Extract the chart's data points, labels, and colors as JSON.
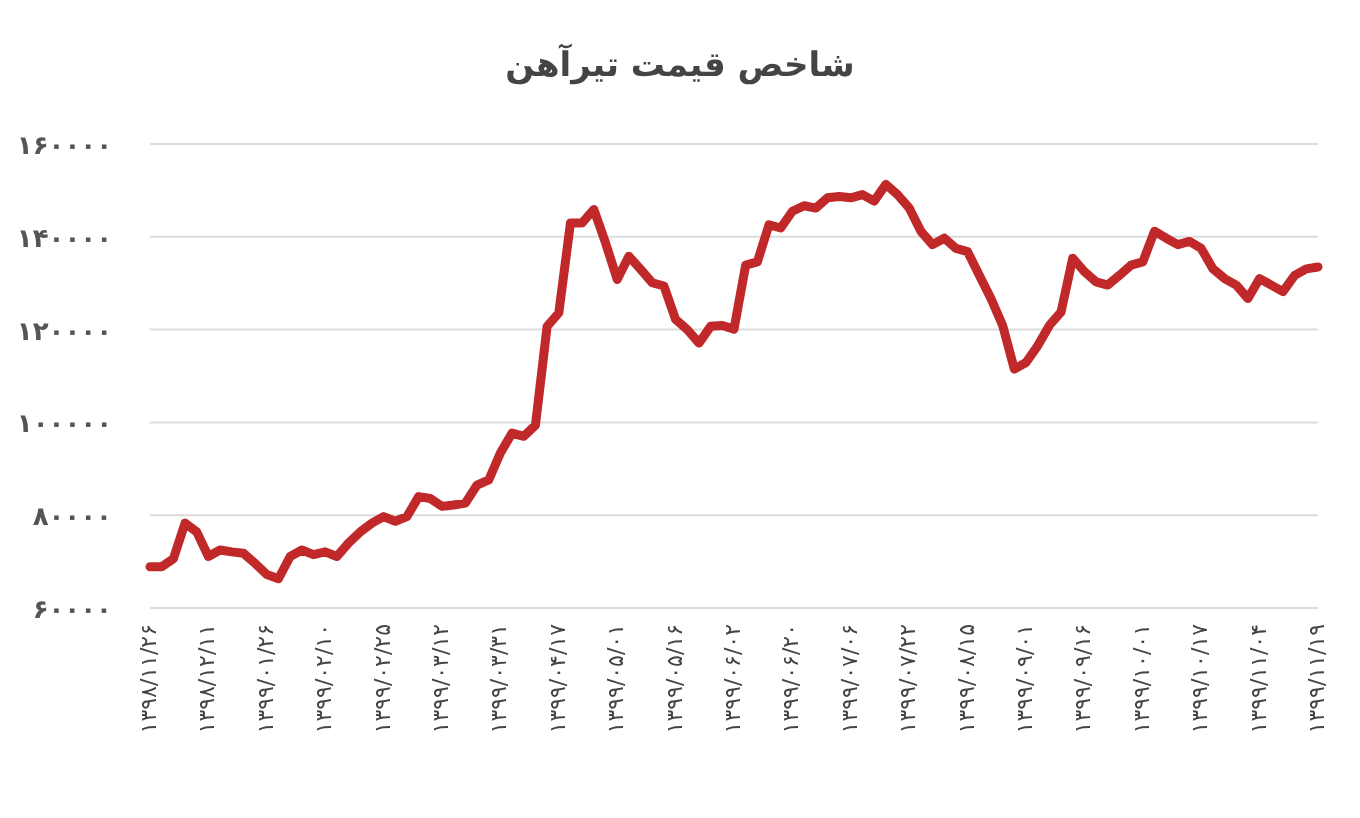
{
  "chart_data": {
    "type": "line",
    "title": "شاخص قیمت تیرآهن",
    "categories": [
      "۱۳۹۸/۱۱/۲۶",
      null,
      null,
      null,
      null,
      "۱۳۹۸/۱۲/۱۱",
      null,
      null,
      null,
      null,
      "۱۳۹۹/۰۱/۲۶",
      null,
      null,
      null,
      null,
      "۱۳۹۹/۰۲/۱۰",
      null,
      null,
      null,
      null,
      "۱۳۹۹/۰۲/۲۵",
      null,
      null,
      null,
      null,
      "۱۳۹۹/۰۳/۱۲",
      null,
      null,
      null,
      null,
      "۱۳۹۹/۰۳/۳۱",
      null,
      null,
      null,
      null,
      "۱۳۹۹/۰۴/۱۷",
      null,
      null,
      null,
      null,
      "۱۳۹۹/۰۵/۰۱",
      null,
      null,
      null,
      null,
      "۱۳۹۹/۰۵/۱۶",
      null,
      null,
      null,
      null,
      "۱۳۹۹/۰۶/۰۲",
      null,
      null,
      null,
      null,
      "۱۳۹۹/۰۶/۲۰",
      null,
      null,
      null,
      null,
      "۱۳۹۹/۰۷/۰۶",
      null,
      null,
      null,
      null,
      "۱۳۹۹/۰۷/۲۲",
      null,
      null,
      null,
      null,
      "۱۳۹۹/۰۸/۱۵",
      null,
      null,
      null,
      null,
      "۱۳۹۹/۰۹/۰۱",
      null,
      null,
      null,
      null,
      "۱۳۹۹/۰۹/۱۶",
      null,
      null,
      null,
      null,
      "۱۳۹۹/۱۰/۰۱",
      null,
      null,
      null,
      null,
      "۱۳۹۹/۱۰/۱۷",
      null,
      null,
      null,
      null,
      "۱۳۹۹/۱۱/۰۴",
      null,
      null,
      null,
      null,
      "۱۳۹۹/۱۱/۱۹"
    ],
    "series": [
      {
        "color": "#c0282a",
        "values": [
          68900,
          68900,
          70600,
          78300,
          76400,
          71100,
          72500,
          72100,
          71800,
          69600,
          67200,
          66300,
          71100,
          72500,
          71500,
          72100,
          71100,
          74000,
          76400,
          78300,
          79700,
          78700,
          79700,
          84000,
          83600,
          81900,
          82200,
          82600,
          86500,
          87600,
          93400,
          97700,
          97000,
          99400,
          120700,
          123600,
          143000,
          143000,
          145900,
          138700,
          130800,
          135800,
          133000,
          130100,
          129400,
          122200,
          120000,
          117100,
          120700,
          120900,
          120100,
          133900,
          134600,
          142600,
          141900,
          145500,
          146700,
          146200,
          148400,
          148700,
          148400,
          149100,
          147700,
          151300,
          149100,
          146200,
          141200,
          138300,
          139700,
          137500,
          136800,
          131700,
          126700,
          120900,
          111500,
          112900,
          116500,
          120900,
          123800,
          135400,
          132500,
          130300,
          129600,
          131700,
          133900,
          134600,
          141200,
          139700,
          138300,
          139000,
          137500,
          133100,
          131000,
          129600,
          126700,
          131000,
          129600,
          128200,
          131700,
          133100,
          133500
        ]
      }
    ],
    "ylim": [
      60000,
      160000
    ],
    "yticks": [
      {
        "value": 60000,
        "label": "۶۰۰۰۰"
      },
      {
        "value": 80000,
        "label": "۸۰۰۰۰"
      },
      {
        "value": 100000,
        "label": "۱۰۰۰۰۰"
      },
      {
        "value": 120000,
        "label": "۱۲۰۰۰۰"
      },
      {
        "value": 140000,
        "label": "۱۴۰۰۰۰"
      },
      {
        "value": 160000,
        "label": "۱۶۰۰۰۰"
      }
    ],
    "grid": "y",
    "marker": "none",
    "line_style": "solid"
  }
}
